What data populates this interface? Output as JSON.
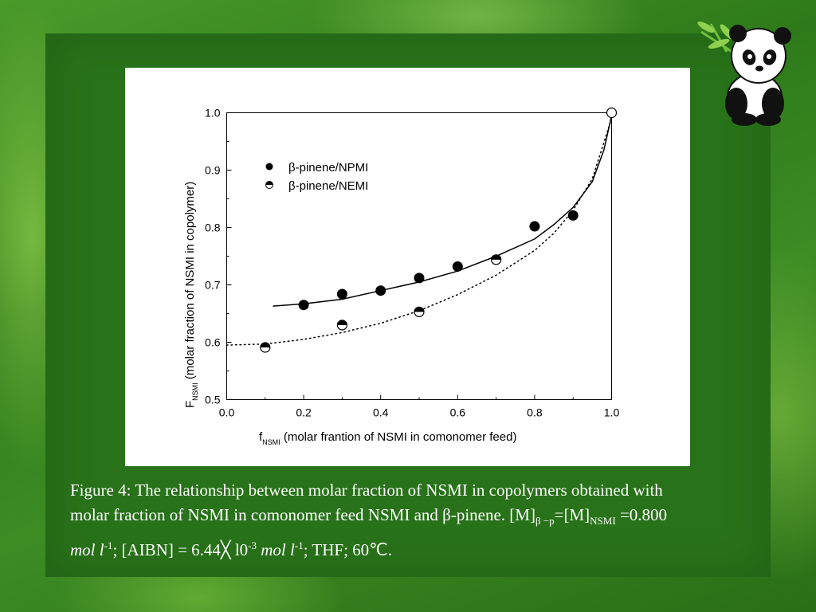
{
  "colors": {
    "background": "#2f7a1c",
    "panel": "#287219",
    "chart_bg": "#ffffff",
    "caption_text": "#ffffff"
  },
  "decoration": {
    "icon": "panda-with-bamboo"
  },
  "chart_data": {
    "type": "scatter",
    "xlabel": {
      "main": "f",
      "sub": "NSMI",
      "rest": " (molar frantion of NSMI in comonomer feed)"
    },
    "ylabel": {
      "main": "F",
      "sub": "NSMI",
      "rest": " (molar fraction of NSMI in copolymer)"
    },
    "xlim": [
      0.0,
      1.0
    ],
    "ylim": [
      0.5,
      1.0
    ],
    "xticks": [
      0.0,
      0.2,
      0.4,
      0.6,
      0.8,
      1.0
    ],
    "yticks": [
      0.5,
      0.6,
      0.7,
      0.8,
      0.9,
      1.0
    ],
    "xtick_labels": [
      "0.0",
      "0.2",
      "0.4",
      "0.6",
      "0.8",
      "1.0"
    ],
    "ytick_labels": [
      "0.5",
      "0.6",
      "0.7",
      "0.8",
      "0.9",
      "1.0"
    ],
    "legend_position": "upper-left",
    "series": [
      {
        "name": "β-pinene/NPMI",
        "marker": "filled-circle",
        "points": [
          [
            0.2,
            0.665
          ],
          [
            0.3,
            0.684
          ],
          [
            0.4,
            0.69
          ],
          [
            0.5,
            0.712
          ],
          [
            0.6,
            0.732
          ],
          [
            0.7,
            0.744
          ],
          [
            0.8,
            0.802
          ],
          [
            0.9,
            0.821
          ]
        ],
        "fit": "solid",
        "fit_curve": [
          [
            0.12,
            0.663
          ],
          [
            0.2,
            0.667
          ],
          [
            0.3,
            0.675
          ],
          [
            0.4,
            0.69
          ],
          [
            0.5,
            0.705
          ],
          [
            0.6,
            0.724
          ],
          [
            0.7,
            0.75
          ],
          [
            0.8,
            0.78
          ],
          [
            0.85,
            0.805
          ],
          [
            0.9,
            0.835
          ],
          [
            0.95,
            0.88
          ],
          [
            0.98,
            0.935
          ],
          [
            1.0,
            0.995
          ]
        ]
      },
      {
        "name": "β-pinene/NEMI",
        "marker": "half-filled-circle",
        "points": [
          [
            0.1,
            0.591
          ],
          [
            0.3,
            0.63
          ],
          [
            0.5,
            0.653
          ],
          [
            0.7,
            0.744
          ],
          [
            1.0,
            1.0
          ]
        ],
        "fit": "dotted",
        "fit_curve": [
          [
            0.0,
            0.595
          ],
          [
            0.1,
            0.597
          ],
          [
            0.2,
            0.605
          ],
          [
            0.3,
            0.617
          ],
          [
            0.4,
            0.633
          ],
          [
            0.5,
            0.655
          ],
          [
            0.6,
            0.683
          ],
          [
            0.7,
            0.717
          ],
          [
            0.8,
            0.76
          ],
          [
            0.85,
            0.79
          ],
          [
            0.9,
            0.83
          ],
          [
            0.95,
            0.885
          ],
          [
            1.0,
            0.99
          ]
        ]
      }
    ]
  },
  "caption": {
    "line1": "Figure 4: The relationship between molar fraction of NSMI in copolymers obtained with",
    "line2_text": "molar fraction of NSMI in comonomer feed NSMI and β-pinene. [M]",
    "line2_sub1": "β −p",
    "line2_eq": "=[M]",
    "line2_sub2": "NSMI",
    "line2_end": " =0.800",
    "line3_mol1": "mol l",
    "line3_sup1": "-1",
    "line3_aibn": "; [AIBN] = 6.44╳ l0",
    "line3_sup2": "-3",
    "line3_mol2": " mol l",
    "line3_sup3": "-1",
    "line3_end": "; THF; 60℃."
  }
}
